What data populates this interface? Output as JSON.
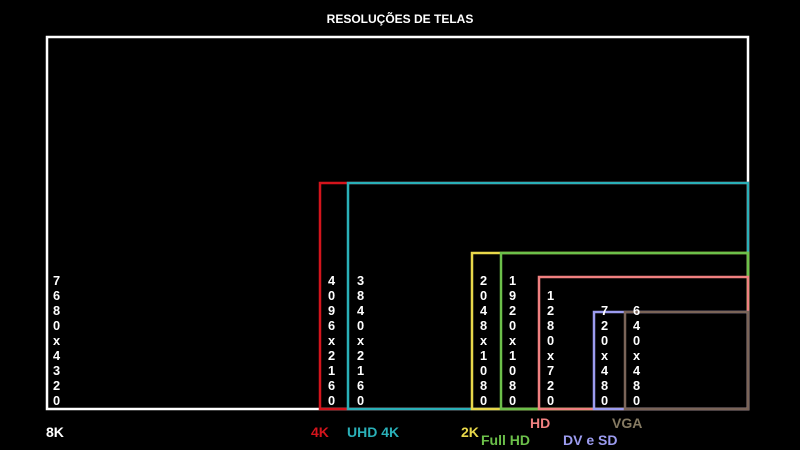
{
  "title": "RESOLUÇÕES DE TELAS",
  "screens": [
    {
      "label": "8K",
      "resolution": "7680x4320"
    },
    {
      "label": "4K",
      "resolution": "4096x2160"
    },
    {
      "label": "UHD 4K",
      "resolution": "3840x2160"
    },
    {
      "label": "2K",
      "resolution": "2048x1080"
    },
    {
      "label": "Full HD",
      "resolution": "1920x1080"
    },
    {
      "label": "HD",
      "resolution": "1280x720"
    },
    {
      "label": "DV e SD",
      "resolution": "720x480"
    },
    {
      "label": "VGA",
      "resolution": "640x480"
    }
  ]
}
